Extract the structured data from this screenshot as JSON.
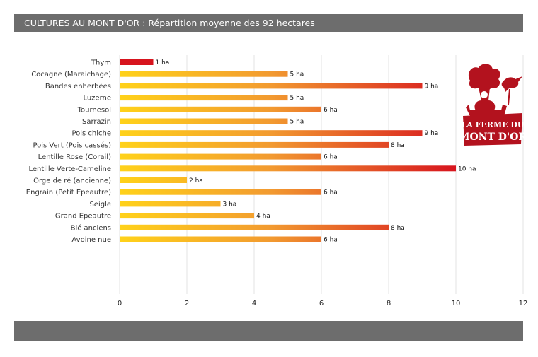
{
  "header": {
    "title": "CULTURES AU MONT D'OR : Répartition moyenne des 92 hectares"
  },
  "logo": {
    "text_line1": "LA FERME DU",
    "text_line2": "MONT D'OR"
  },
  "colors": {
    "bar_start": "#ffd21a",
    "bar_mid": "#f29a30",
    "bar_end": "#d7141e",
    "highlight_label": "#d7141e",
    "gridline": "#e3e3e3",
    "header_bg": "#6d6d6d"
  },
  "chart_data": {
    "type": "bar",
    "orientation": "horizontal",
    "title": "",
    "xlabel": "",
    "ylabel": "",
    "xlim": [
      0,
      12
    ],
    "xticks": [
      0,
      2,
      4,
      6,
      8,
      10,
      12
    ],
    "value_unit": "ha",
    "grid": "vertical",
    "groups": [
      {
        "items": [
          {
            "label": "Thym",
            "value": 1,
            "highlight": true
          }
        ]
      },
      {
        "items": [
          {
            "label": "Cocagne (Maraichage)",
            "value": 5
          },
          {
            "label": "Bandes enherbées",
            "value": 9
          },
          {
            "label": "Luzerne",
            "value": 5
          }
        ]
      },
      {
        "items": [
          {
            "label": "Tournesol",
            "value": 6
          },
          {
            "label": "Sarrazin",
            "value": 5
          }
        ]
      },
      {
        "items": [
          {
            "label": "Pois chiche",
            "value": 9
          },
          {
            "label": "Pois Vert (Pois cassés)",
            "value": 8
          },
          {
            "label": "Lentille Rose (Corail)",
            "value": 6
          },
          {
            "label": "Lentille Verte-Cameline",
            "value": 10
          }
        ]
      },
      {
        "items": [
          {
            "label": "Orge de ré (ancienne)",
            "value": 2
          },
          {
            "label": "Engrain (Petit Epeautre)",
            "value": 6
          },
          {
            "label": "Seigle",
            "value": 3
          },
          {
            "label": "Grand Epeautre",
            "value": 4
          },
          {
            "label": "Blé anciens",
            "value": 8
          },
          {
            "label": "Avoine nue",
            "value": 6
          }
        ]
      }
    ]
  }
}
